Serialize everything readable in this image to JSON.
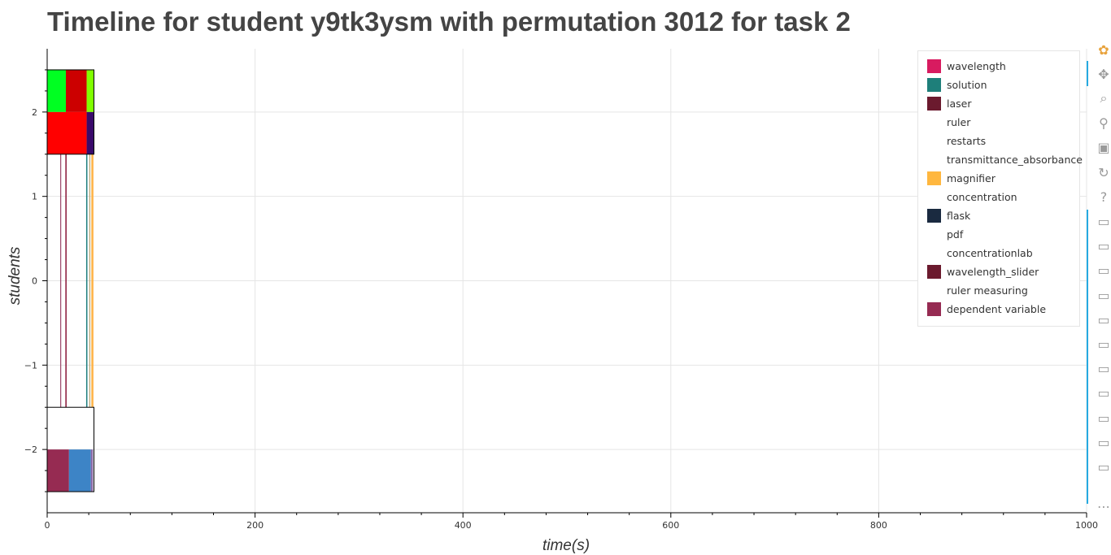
{
  "title": "Timeline for student y9tk3ysm with permutation 3012 for task 2",
  "chart_data": {
    "type": "bar",
    "orientation": "horizontal-timeline",
    "xlabel": "time(s)",
    "ylabel": "students",
    "xlim": [
      0,
      1000
    ],
    "ylim": [
      -2.75,
      2.75
    ],
    "x_ticks": [
      0,
      200,
      400,
      600,
      800,
      1000
    ],
    "y_ticks": [
      -2,
      -1,
      0,
      1,
      2
    ],
    "x_tick_labels": [
      "0",
      "200",
      "400",
      "600",
      "800",
      "1000"
    ],
    "y_tick_labels": [
      "−2",
      "−1",
      "0",
      "1",
      "2"
    ],
    "grid": true,
    "legend_position": "top-right",
    "rows": [
      {
        "y_from": 2.0,
        "y_to": 2.5,
        "segments": [
          {
            "start": 0,
            "end": 18,
            "color": "#00ff22"
          },
          {
            "start": 18,
            "end": 38,
            "color": "#cc0000"
          },
          {
            "start": 38,
            "end": 45,
            "color": "#80ff00"
          }
        ]
      },
      {
        "y_from": 1.5,
        "y_to": 2.0,
        "segments": [
          {
            "start": 0,
            "end": 38,
            "color": "#ff0000"
          },
          {
            "start": 38,
            "end": 45,
            "color": "#3a0a6b"
          }
        ]
      },
      {
        "y_from": -1.5,
        "y_to": 1.5,
        "segments": [
          {
            "start": 12.5,
            "end": 13.5,
            "color": "#a05070"
          },
          {
            "start": 17.5,
            "end": 18.7,
            "color": "#8b1a3a"
          },
          {
            "start": 37.5,
            "end": 38.7,
            "color": "#1f7f7f"
          },
          {
            "start": 40.5,
            "end": 41.5,
            "color": "#b8a67a"
          },
          {
            "start": 42.5,
            "end": 44.5,
            "color": "#ffb347"
          }
        ]
      },
      {
        "y_from": -2.5,
        "y_to": -2.0,
        "segments": [
          {
            "start": 0,
            "end": 21,
            "color": "#962b52"
          },
          {
            "start": 21,
            "end": 42,
            "color": "#3d84c6"
          },
          {
            "start": 42,
            "end": 44,
            "color": "#8a6aa8"
          }
        ]
      }
    ],
    "outlines": [
      {
        "y_from": 1.5,
        "y_to": 2.5,
        "start": 0,
        "end": 45
      },
      {
        "y_from": -2.5,
        "y_to": -1.5,
        "start": 0,
        "end": 45
      }
    ],
    "legend": [
      {
        "label": "wavelength",
        "color": "#d81b60"
      },
      {
        "label": "solution",
        "color": "#1e7f7a"
      },
      {
        "label": "laser",
        "color": "#6b1a2e"
      },
      {
        "label": "ruler",
        "color": ""
      },
      {
        "label": "restarts",
        "color": ""
      },
      {
        "label": "transmittance_absorbance",
        "color": ""
      },
      {
        "label": "magnifier",
        "color": "#ffb73f"
      },
      {
        "label": "concentration",
        "color": ""
      },
      {
        "label": "flask",
        "color": "#1a2a40"
      },
      {
        "label": "pdf",
        "color": ""
      },
      {
        "label": "concentrationlab",
        "color": ""
      },
      {
        "label": "wavelength_slider",
        "color": "#6b1a2e"
      },
      {
        "label": "ruler measuring",
        "color": ""
      },
      {
        "label": "dependent variable",
        "color": "#962b52"
      }
    ]
  },
  "toolbar": {
    "tools": [
      {
        "icon": "bokeh-logo-icon",
        "glyph": "✿"
      },
      {
        "icon": "pan-icon",
        "glyph": "✥"
      },
      {
        "icon": "box-zoom-icon",
        "glyph": "⌕"
      },
      {
        "icon": "wheel-zoom-icon",
        "glyph": "⚲"
      },
      {
        "icon": "save-icon",
        "glyph": "▣"
      },
      {
        "icon": "reset-icon",
        "glyph": "↻"
      },
      {
        "icon": "help-icon",
        "glyph": "?"
      },
      {
        "icon": "hover-icon",
        "glyph": "▭"
      },
      {
        "icon": "hover-icon",
        "glyph": "▭"
      },
      {
        "icon": "hover-icon",
        "glyph": "▭"
      },
      {
        "icon": "hover-icon",
        "glyph": "▭"
      },
      {
        "icon": "hover-icon",
        "glyph": "▭"
      },
      {
        "icon": "hover-icon",
        "glyph": "▭"
      },
      {
        "icon": "hover-icon",
        "glyph": "▭"
      },
      {
        "icon": "hover-icon",
        "glyph": "▭"
      },
      {
        "icon": "hover-icon",
        "glyph": "▭"
      },
      {
        "icon": "hover-icon",
        "glyph": "▭"
      },
      {
        "icon": "hover-icon",
        "glyph": "▭"
      },
      {
        "icon": "more-icon",
        "glyph": "⋯"
      }
    ]
  }
}
